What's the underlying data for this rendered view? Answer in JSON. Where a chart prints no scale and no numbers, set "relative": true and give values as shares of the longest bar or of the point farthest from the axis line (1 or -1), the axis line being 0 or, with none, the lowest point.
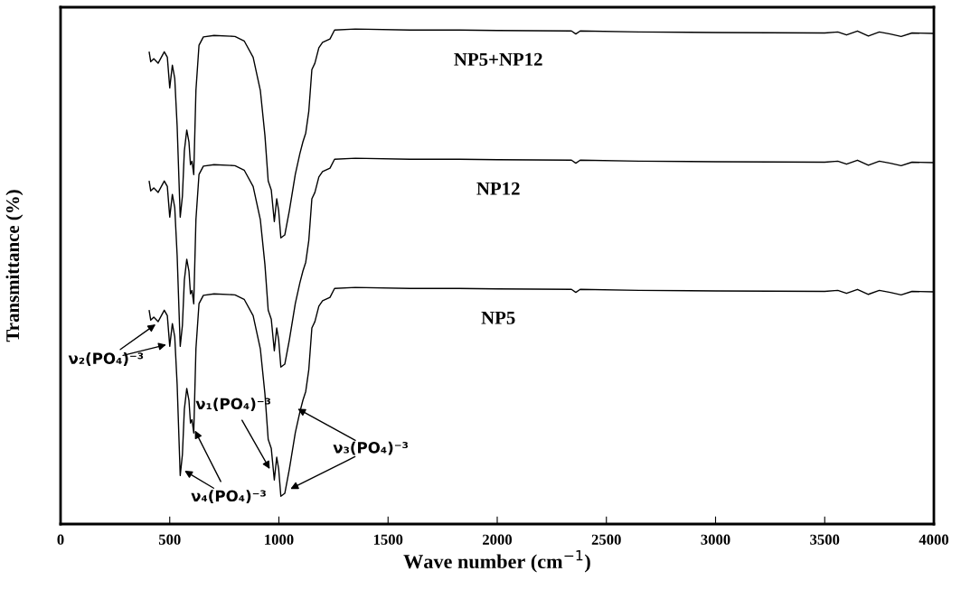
{
  "chart_data": {
    "type": "line",
    "relative": true,
    "xlabel": "Wave number (cm$^{−1}$)",
    "ylabel": "Transmittance (%)",
    "xlim": [
      0,
      4000
    ],
    "xticks": [
      0,
      500,
      1000,
      1500,
      2000,
      2500,
      3000,
      3500,
      4000
    ],
    "grid": false,
    "legend": false,
    "marker": "none",
    "line_style": "solid",
    "x": [
      406,
      413,
      427,
      447,
      475,
      489,
      500,
      512,
      523,
      534,
      548,
      558,
      567,
      578,
      588,
      595,
      602,
      610,
      620,
      634,
      654,
      703,
      799,
      841,
      882,
      915,
      936,
      951,
      965,
      979,
      990,
      999,
      1009,
      1027,
      1048,
      1075,
      1096,
      1110,
      1123,
      1137,
      1151,
      1165,
      1183,
      1200,
      1234,
      1255,
      1350,
      1600,
      1800,
      2000,
      2340,
      2360,
      2380,
      2650,
      3000,
      3500,
      3560,
      3600,
      3650,
      3700,
      3750,
      3800,
      3850,
      3900,
      4000
    ],
    "series": [
      {
        "name": "NP5+NP12",
        "color": "#000000",
        "values": [
          0.953,
          0.934,
          0.94,
          0.931,
          0.954,
          0.943,
          0.881,
          0.927,
          0.9,
          0.803,
          0.62,
          0.662,
          0.754,
          0.796,
          0.772,
          0.726,
          0.733,
          0.706,
          0.876,
          0.967,
          0.984,
          0.987,
          0.985,
          0.976,
          0.943,
          0.876,
          0.785,
          0.693,
          0.675,
          0.611,
          0.657,
          0.633,
          0.578,
          0.584,
          0.633,
          0.706,
          0.748,
          0.772,
          0.79,
          0.834,
          0.918,
          0.931,
          0.962,
          0.973,
          0.98,
          0.998,
          1.0,
          0.998,
          0.998,
          0.997,
          0.996,
          0.99,
          0.996,
          0.994,
          0.993,
          0.992,
          0.994,
          0.988,
          0.996,
          0.986,
          0.994,
          0.99,
          0.985,
          0.992,
          0.991
        ]
      },
      {
        "name": "NP12",
        "color": "#000000",
        "values": [
          0.692,
          0.673,
          0.679,
          0.67,
          0.693,
          0.682,
          0.62,
          0.666,
          0.639,
          0.542,
          0.359,
          0.401,
          0.493,
          0.535,
          0.511,
          0.465,
          0.472,
          0.445,
          0.615,
          0.706,
          0.723,
          0.726,
          0.724,
          0.715,
          0.682,
          0.615,
          0.524,
          0.432,
          0.414,
          0.35,
          0.396,
          0.372,
          0.317,
          0.323,
          0.372,
          0.445,
          0.487,
          0.511,
          0.529,
          0.573,
          0.657,
          0.67,
          0.701,
          0.712,
          0.719,
          0.737,
          0.739,
          0.737,
          0.737,
          0.736,
          0.735,
          0.729,
          0.735,
          0.733,
          0.732,
          0.731,
          0.733,
          0.727,
          0.735,
          0.725,
          0.733,
          0.729,
          0.724,
          0.731,
          0.73
        ]
      },
      {
        "name": "NP5",
        "color": "#000000",
        "values": [
          0.431,
          0.412,
          0.418,
          0.409,
          0.432,
          0.421,
          0.359,
          0.405,
          0.378,
          0.281,
          0.098,
          0.14,
          0.232,
          0.274,
          0.25,
          0.204,
          0.211,
          0.184,
          0.354,
          0.445,
          0.462,
          0.465,
          0.463,
          0.454,
          0.421,
          0.354,
          0.263,
          0.171,
          0.153,
          0.089,
          0.135,
          0.111,
          0.056,
          0.062,
          0.111,
          0.184,
          0.226,
          0.25,
          0.268,
          0.312,
          0.396,
          0.409,
          0.44,
          0.451,
          0.458,
          0.476,
          0.478,
          0.476,
          0.476,
          0.475,
          0.474,
          0.468,
          0.474,
          0.472,
          0.471,
          0.47,
          0.472,
          0.466,
          0.474,
          0.464,
          0.472,
          0.468,
          0.463,
          0.47,
          0.469
        ]
      }
    ],
    "annotations": [
      {
        "text": "ν₂(PO₄)⁻³",
        "x": 440,
        "y": 0.405
      },
      {
        "text": "ν₄(PO₄)⁻³",
        "x": 563,
        "y": 0.109
      },
      {
        "text": "ν₁(PO₄)⁻³",
        "x": 961,
        "y": 0.109
      },
      {
        "text": "ν₃(PO₄)⁻³",
        "x": 1081,
        "y": 0.234
      }
    ]
  }
}
